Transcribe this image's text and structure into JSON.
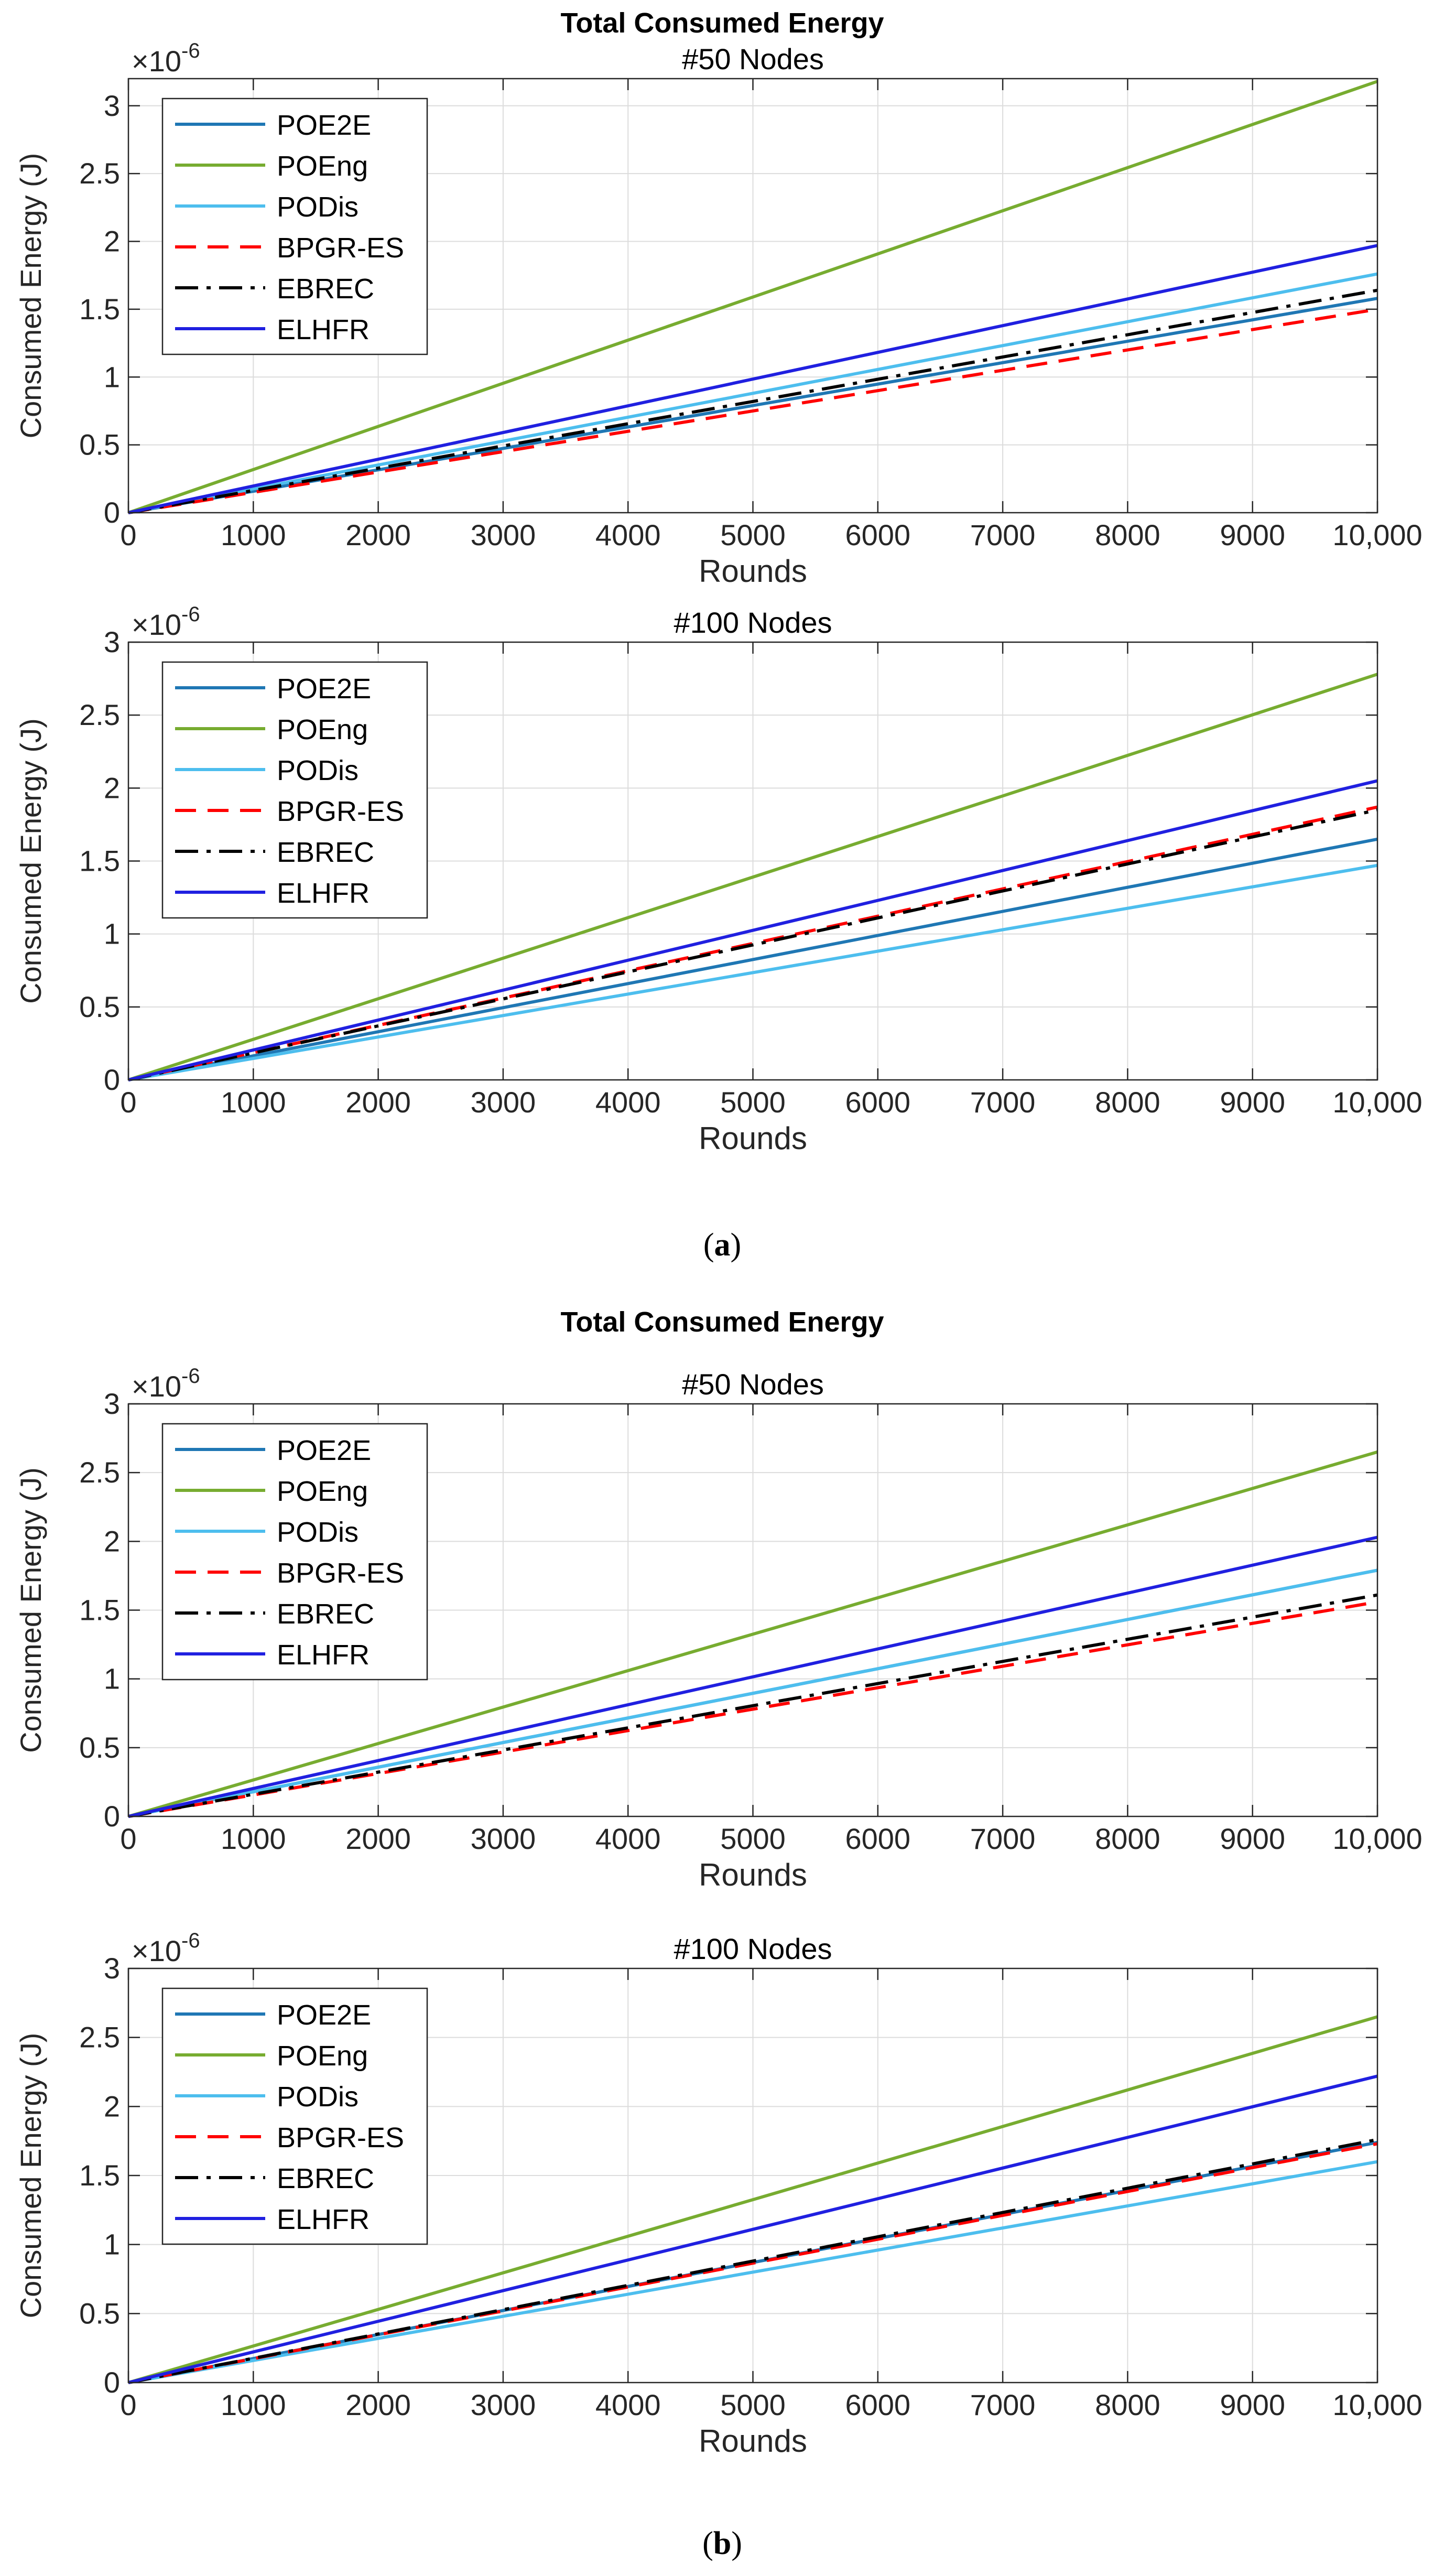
{
  "figure": {
    "group_titles": [
      "Total Consumed Energy",
      "Total Consumed Energy"
    ],
    "captions": [
      {
        "open": "(",
        "letter": "a",
        "close": ")"
      },
      {
        "open": "(",
        "letter": "b",
        "close": ")"
      }
    ]
  },
  "chart_data": [
    {
      "type": "line",
      "group_title": "Total Consumed Energy",
      "title": "#50 Nodes",
      "xlabel": "Rounds",
      "ylabel": "Consumed Energy (J)",
      "y_multiplier_base": "×10",
      "y_multiplier_exp": "-6",
      "xlim": [
        0,
        10000
      ],
      "ylim": [
        0,
        3.2
      ],
      "xticks": [
        0,
        1000,
        2000,
        3000,
        4000,
        5000,
        6000,
        7000,
        8000,
        9000,
        10000
      ],
      "xtick_labels": [
        "0",
        "1000",
        "2000",
        "3000",
        "4000",
        "5000",
        "6000",
        "7000",
        "8000",
        "9000",
        "10,000"
      ],
      "yticks": [
        0,
        0.5,
        1,
        1.5,
        2,
        2.5,
        3
      ],
      "ytick_labels": [
        "0",
        "0.5",
        "1",
        "1.5",
        "2",
        "2.5",
        "3"
      ],
      "grid": true,
      "legend_position": "top-left",
      "series": [
        {
          "name": "POE2E",
          "x": [
            0,
            10000
          ],
          "values": [
            0,
            1.58
          ],
          "color": "#1f77b4",
          "dash": "solid"
        },
        {
          "name": "POEng",
          "x": [
            0,
            10000
          ],
          "values": [
            0,
            3.18
          ],
          "color": "#77ac30",
          "dash": "solid"
        },
        {
          "name": "PODis",
          "x": [
            0,
            10000
          ],
          "values": [
            0,
            1.76
          ],
          "color": "#4dbeee",
          "dash": "solid"
        },
        {
          "name": "BPGR-ES",
          "x": [
            0,
            10000
          ],
          "values": [
            0,
            1.5
          ],
          "color": "#ff0000",
          "dash": "dashed"
        },
        {
          "name": "EBREC",
          "x": [
            0,
            10000
          ],
          "values": [
            0,
            1.64
          ],
          "color": "#000000",
          "dash": "dashdot"
        },
        {
          "name": "ELHFR",
          "x": [
            0,
            10000
          ],
          "values": [
            0,
            1.97
          ],
          "color": "#2020e0",
          "dash": "solid"
        }
      ]
    },
    {
      "type": "line",
      "group_title": "Total Consumed Energy",
      "title": "#100 Nodes",
      "xlabel": "Rounds",
      "ylabel": "Consumed Energy (J)",
      "y_multiplier_base": "×10",
      "y_multiplier_exp": "-6",
      "xlim": [
        0,
        10000
      ],
      "ylim": [
        0,
        3
      ],
      "xticks": [
        0,
        1000,
        2000,
        3000,
        4000,
        5000,
        6000,
        7000,
        8000,
        9000,
        10000
      ],
      "xtick_labels": [
        "0",
        "1000",
        "2000",
        "3000",
        "4000",
        "5000",
        "6000",
        "7000",
        "8000",
        "9000",
        "10,000"
      ],
      "yticks": [
        0,
        0.5,
        1,
        1.5,
        2,
        2.5,
        3
      ],
      "ytick_labels": [
        "0",
        "0.5",
        "1",
        "1.5",
        "2",
        "2.5",
        "3"
      ],
      "grid": true,
      "legend_position": "top-left",
      "series": [
        {
          "name": "POE2E",
          "x": [
            0,
            10000
          ],
          "values": [
            0,
            1.65
          ],
          "color": "#1f77b4",
          "dash": "solid"
        },
        {
          "name": "POEng",
          "x": [
            0,
            10000
          ],
          "values": [
            0,
            2.78
          ],
          "color": "#77ac30",
          "dash": "solid"
        },
        {
          "name": "PODis",
          "x": [
            0,
            10000
          ],
          "values": [
            0,
            1.47
          ],
          "color": "#4dbeee",
          "dash": "solid"
        },
        {
          "name": "BPGR-ES",
          "x": [
            0,
            10000
          ],
          "values": [
            0,
            1.87
          ],
          "color": "#ff0000",
          "dash": "dashed"
        },
        {
          "name": "EBREC",
          "x": [
            0,
            10000
          ],
          "values": [
            0,
            1.85
          ],
          "color": "#000000",
          "dash": "dashdot"
        },
        {
          "name": "ELHFR",
          "x": [
            0,
            10000
          ],
          "values": [
            0,
            2.05
          ],
          "color": "#2020e0",
          "dash": "solid"
        }
      ]
    },
    {
      "type": "line",
      "group_title": "Total Consumed Energy",
      "title": "#50 Nodes",
      "xlabel": "Rounds",
      "ylabel": "Consumed Energy (J)",
      "y_multiplier_base": "×10",
      "y_multiplier_exp": "-6",
      "xlim": [
        0,
        10000
      ],
      "ylim": [
        0,
        3
      ],
      "xticks": [
        0,
        1000,
        2000,
        3000,
        4000,
        5000,
        6000,
        7000,
        8000,
        9000,
        10000
      ],
      "xtick_labels": [
        "0",
        "1000",
        "2000",
        "3000",
        "4000",
        "5000",
        "6000",
        "7000",
        "8000",
        "9000",
        "10,000"
      ],
      "yticks": [
        0,
        0.5,
        1,
        1.5,
        2,
        2.5,
        3
      ],
      "ytick_labels": [
        "0",
        "0.5",
        "1",
        "1.5",
        "2",
        "2.5",
        "3"
      ],
      "grid": true,
      "legend_position": "top-left",
      "series": [
        {
          "name": "POE2E",
          "x": [
            0,
            10000
          ],
          "values": [
            0,
            1.79
          ],
          "color": "#1f77b4",
          "dash": "solid"
        },
        {
          "name": "POEng",
          "x": [
            0,
            10000
          ],
          "values": [
            0,
            2.65
          ],
          "color": "#77ac30",
          "dash": "solid"
        },
        {
          "name": "PODis",
          "x": [
            0,
            10000
          ],
          "values": [
            0,
            1.79
          ],
          "color": "#4dbeee",
          "dash": "solid"
        },
        {
          "name": "BPGR-ES",
          "x": [
            0,
            10000
          ],
          "values": [
            0,
            1.56
          ],
          "color": "#ff0000",
          "dash": "dashed"
        },
        {
          "name": "EBREC",
          "x": [
            0,
            10000
          ],
          "values": [
            0,
            1.61
          ],
          "color": "#000000",
          "dash": "dashdot"
        },
        {
          "name": "ELHFR",
          "x": [
            0,
            10000
          ],
          "values": [
            0,
            2.03
          ],
          "color": "#2020e0",
          "dash": "solid"
        }
      ]
    },
    {
      "type": "line",
      "group_title": "Total Consumed Energy",
      "title": "#100 Nodes",
      "xlabel": "Rounds",
      "ylabel": "Consumed Energy (J)",
      "y_multiplier_base": "×10",
      "y_multiplier_exp": "-6",
      "xlim": [
        0,
        10000
      ],
      "ylim": [
        0,
        3
      ],
      "xticks": [
        0,
        1000,
        2000,
        3000,
        4000,
        5000,
        6000,
        7000,
        8000,
        9000,
        10000
      ],
      "xtick_labels": [
        "0",
        "1000",
        "2000",
        "3000",
        "4000",
        "5000",
        "6000",
        "7000",
        "8000",
        "9000",
        "10,000"
      ],
      "yticks": [
        0,
        0.5,
        1,
        1.5,
        2,
        2.5,
        3
      ],
      "ytick_labels": [
        "0",
        "0.5",
        "1",
        "1.5",
        "2",
        "2.5",
        "3"
      ],
      "grid": true,
      "legend_position": "top-left",
      "series": [
        {
          "name": "POE2E",
          "x": [
            0,
            10000
          ],
          "values": [
            0,
            1.74
          ],
          "color": "#1f77b4",
          "dash": "solid"
        },
        {
          "name": "POEng",
          "x": [
            0,
            10000
          ],
          "values": [
            0,
            2.65
          ],
          "color": "#77ac30",
          "dash": "solid"
        },
        {
          "name": "PODis",
          "x": [
            0,
            10000
          ],
          "values": [
            0,
            1.6
          ],
          "color": "#4dbeee",
          "dash": "solid"
        },
        {
          "name": "BPGR-ES",
          "x": [
            0,
            10000
          ],
          "values": [
            0,
            1.73
          ],
          "color": "#ff0000",
          "dash": "dashed"
        },
        {
          "name": "EBREC",
          "x": [
            0,
            10000
          ],
          "values": [
            0,
            1.76
          ],
          "color": "#000000",
          "dash": "dashdot"
        },
        {
          "name": "ELHFR",
          "x": [
            0,
            10000
          ],
          "values": [
            0,
            2.22
          ],
          "color": "#2020e0",
          "dash": "solid"
        }
      ]
    }
  ]
}
